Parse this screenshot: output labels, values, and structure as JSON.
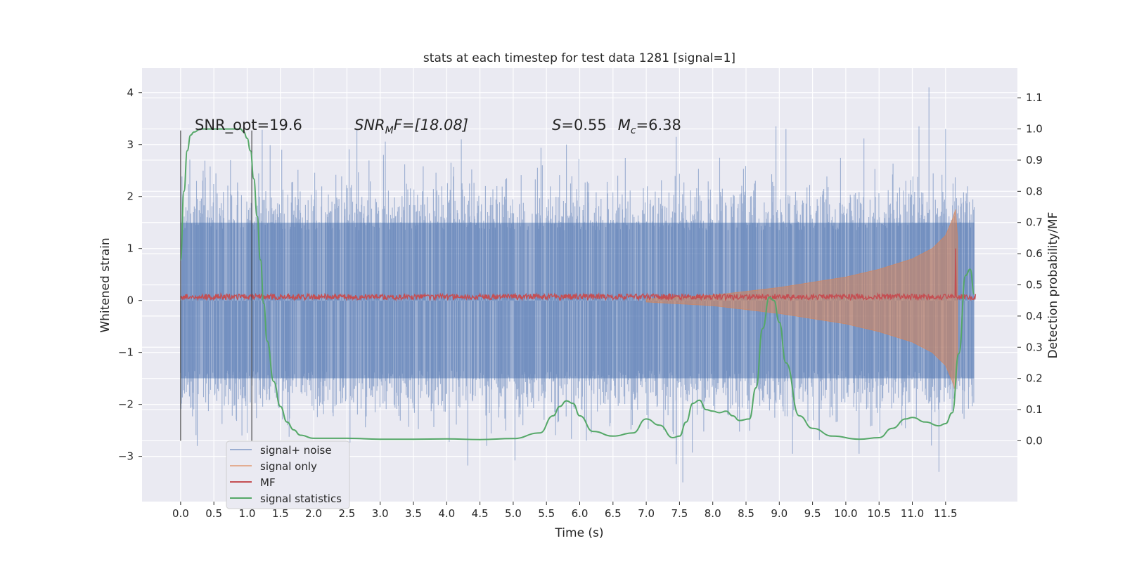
{
  "chart_data": {
    "type": "line",
    "title": "stats at each timestep for test data 1281 [signal=1]",
    "xlabel": "Time (s)",
    "ylabel": "Whitened strain",
    "y2label": "Detection probability/MF",
    "xlim": [
      -0.58,
      12.58
    ],
    "ylim": [
      -3.87,
      4.47
    ],
    "y2lim": [
      -0.195,
      1.195
    ],
    "xticks": [
      "0.0",
      "0.5",
      "1.0",
      "1.5",
      "2.0",
      "2.5",
      "3.0",
      "3.5",
      "4.0",
      "4.5",
      "5.0",
      "5.5",
      "6.0",
      "6.5",
      "7.0",
      "7.5",
      "8.0",
      "8.5",
      "9.0",
      "9.5",
      "10.0",
      "10.5",
      "11.0",
      "11.5"
    ],
    "yticks": [
      "−3",
      "−2",
      "−1",
      "0",
      "1",
      "2",
      "3",
      "4"
    ],
    "y2ticks": [
      "0.0",
      "0.1",
      "0.2",
      "0.3",
      "0.4",
      "0.5",
      "0.6",
      "0.7",
      "0.8",
      "0.9",
      "1.0",
      "1.1"
    ],
    "grid": true,
    "legend_position": "lower-left",
    "annotations": {
      "snr_opt": "SNR_opt=19.6",
      "snr_mf": "SNR",
      "snr_mf_sub": "M",
      "snr_mf_rest": "F=[18.08]",
      "s_label": "S",
      "s_value": "=0.55",
      "mc_label": "M",
      "mc_sub": "c",
      "mc_value": "=6.38"
    },
    "vertical_lines_x": [
      0.0,
      1.07
    ],
    "series": [
      {
        "name": "signal+ noise",
        "color": "#4c72b0",
        "description_envelope": {
          "core_abs": 1.5,
          "typical_peak": 2.4,
          "max_peak": 4.1,
          "min_trough": -3.5
        }
      },
      {
        "name": "signal only",
        "color": "#dd8452",
        "envelope": {
          "x": [
            7.0,
            8.0,
            9.0,
            10.0,
            10.5,
            11.0,
            11.3,
            11.5,
            11.6,
            11.65,
            11.68
          ],
          "amp": [
            0.03,
            0.1,
            0.25,
            0.45,
            0.6,
            0.8,
            1.0,
            1.25,
            1.55,
            1.75,
            1.2
          ]
        }
      },
      {
        "name": "MF",
        "color": "#c44e52",
        "baseline": 0.07,
        "spike": {
          "x": 11.65,
          "y": 1.0
        }
      },
      {
        "name": "signal statistics",
        "color": "#55a868",
        "axis": "right",
        "x": [
          0.0,
          0.05,
          0.1,
          0.15,
          0.2,
          0.3,
          0.5,
          0.7,
          0.9,
          0.95,
          1.0,
          1.05,
          1.1,
          1.15,
          1.2,
          1.25,
          1.3,
          1.4,
          1.5,
          1.6,
          1.7,
          1.8,
          2.0,
          2.5,
          3.0,
          3.5,
          4.0,
          4.5,
          5.0,
          5.4,
          5.6,
          5.7,
          5.8,
          5.9,
          6.0,
          6.2,
          6.5,
          6.8,
          7.0,
          7.2,
          7.4,
          7.5,
          7.6,
          7.7,
          7.8,
          7.9,
          8.0,
          8.1,
          8.2,
          8.3,
          8.4,
          8.55,
          8.65,
          8.75,
          8.85,
          8.92,
          9.0,
          9.1,
          9.3,
          9.5,
          9.8,
          10.2,
          10.5,
          10.7,
          10.9,
          11.0,
          11.2,
          11.4,
          11.5,
          11.6,
          11.7,
          11.8,
          11.87,
          11.93
        ],
        "y": [
          0.58,
          0.8,
          0.93,
          0.98,
          0.99,
          1.0,
          1.0,
          1.0,
          1.0,
          0.99,
          0.97,
          0.93,
          0.84,
          0.72,
          0.58,
          0.44,
          0.32,
          0.19,
          0.11,
          0.06,
          0.035,
          0.018,
          0.008,
          0.008,
          0.005,
          0.005,
          0.006,
          0.004,
          0.007,
          0.025,
          0.08,
          0.11,
          0.128,
          0.12,
          0.08,
          0.03,
          0.015,
          0.025,
          0.07,
          0.05,
          0.01,
          0.015,
          0.06,
          0.12,
          0.13,
          0.1,
          0.095,
          0.09,
          0.095,
          0.08,
          0.065,
          0.07,
          0.17,
          0.36,
          0.46,
          0.45,
          0.38,
          0.25,
          0.08,
          0.04,
          0.015,
          0.005,
          0.01,
          0.04,
          0.07,
          0.075,
          0.06,
          0.048,
          0.055,
          0.09,
          0.28,
          0.53,
          0.55,
          0.47
        ]
      }
    ]
  }
}
